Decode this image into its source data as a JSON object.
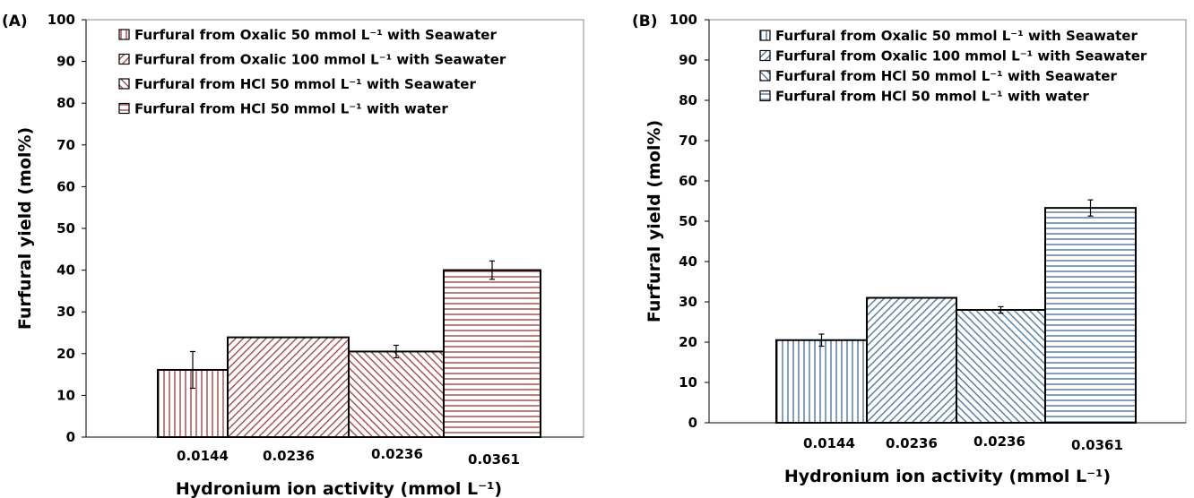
{
  "figure": {
    "panels": [
      {
        "label": "(A)"
      },
      {
        "label": "(B)"
      }
    ]
  },
  "chart_data": [
    {
      "type": "bar",
      "panel": "(A)",
      "title": "",
      "xlabel": "Hydronium ion activity (mmol L⁻¹)",
      "ylabel": "Furfural yield (mol%)",
      "ylim": [
        0,
        100
      ],
      "yticks": [
        0,
        10,
        20,
        30,
        40,
        50,
        60,
        70,
        80,
        90,
        100
      ],
      "grid": false,
      "legend_position": "top-left (inside)",
      "bar_color": "#9e3a36",
      "categories": [
        "0.0144",
        "0.0236",
        "0.0236",
        "0.0361"
      ],
      "series": [
        {
          "name": "Furfural from Oxalic 50 mmol L⁻¹  with Seawater",
          "pattern": "vertical",
          "value": 16.1,
          "error": 4.4
        },
        {
          "name": "Furfural from Oxalic 100 mmol L⁻¹  with Seawater",
          "pattern": "diagonal-down",
          "value": 23.9,
          "error": null
        },
        {
          "name": "Furfural from HCl 50 mmol L⁻¹  with Seawater",
          "pattern": "diagonal-up",
          "value": 20.5,
          "error": 1.5
        },
        {
          "name": "Furfural from HCl 50 mmol L⁻¹  with water",
          "pattern": "horizontal",
          "value": 40.0,
          "error": 2.2
        }
      ]
    },
    {
      "type": "bar",
      "panel": "(B)",
      "title": "",
      "xlabel": "Hydronium ion activity (mmol L⁻¹)",
      "ylabel": "Furfural yield (mol%)",
      "ylim": [
        0,
        100
      ],
      "yticks": [
        0,
        10,
        20,
        30,
        40,
        50,
        60,
        70,
        80,
        90,
        100
      ],
      "grid": false,
      "legend_position": "top-left (inside)",
      "bar_color": "#3f6e9c",
      "categories": [
        "0.0144",
        "0.0236",
        "0.0236",
        "0.0361"
      ],
      "series": [
        {
          "name": "Furfural from Oxalic 50 mmol L⁻¹  with Seawater",
          "pattern": "vertical",
          "value": 20.5,
          "error": 1.5
        },
        {
          "name": "Furfural from Oxalic 100 mmol L⁻¹  with Seawater",
          "pattern": "diagonal-down",
          "value": 31.0,
          "error": null
        },
        {
          "name": "Furfural from HCl 50 mmol L⁻¹  with Seawater",
          "pattern": "diagonal-up",
          "value": 28.0,
          "error": 0.8
        },
        {
          "name": "Furfural from HCl 50 mmol L⁻¹  with water",
          "pattern": "horizontal",
          "value": 53.3,
          "error": 2.0
        }
      ]
    }
  ]
}
